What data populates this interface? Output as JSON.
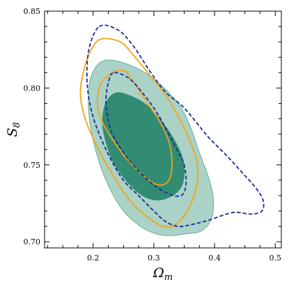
{
  "chart_data": {
    "type": "contour",
    "title": "",
    "xlabel": {
      "main": "Ω",
      "sub": "m"
    },
    "ylabel": {
      "main": "S",
      "sub": "8"
    },
    "xlim": [
      0.12,
      0.51
    ],
    "ylim": [
      0.696,
      0.85
    ],
    "xticks": [
      0.2,
      0.3,
      0.4,
      0.5
    ],
    "xtick_labels": [
      "0.2",
      "0.3",
      "0.4",
      "0.5"
    ],
    "yticks": [
      0.7,
      0.75,
      0.8,
      0.85
    ],
    "ytick_labels": [
      "0.70",
      "0.75",
      "0.80",
      "0.85"
    ],
    "grid": false,
    "legend": "none",
    "colors": {
      "teal_fill_inner": "#318c73",
      "teal_fill_outer": "#aad2c6",
      "teal_edge": "#6aae98",
      "orange": "#f5a316",
      "navy": "#1a2a9a"
    },
    "series": [
      {
        "style": "filled",
        "level": "outer",
        "color_key": "teal_fill_outer",
        "points": [
          [
            0.219,
            0.818
          ],
          [
            0.26,
            0.815
          ],
          [
            0.3,
            0.806
          ],
          [
            0.34,
            0.79
          ],
          [
            0.36,
            0.775
          ],
          [
            0.375,
            0.758
          ],
          [
            0.39,
            0.742
          ],
          [
            0.398,
            0.728
          ],
          [
            0.395,
            0.715
          ],
          [
            0.378,
            0.707
          ],
          [
            0.35,
            0.705
          ],
          [
            0.33,
            0.704
          ],
          [
            0.305,
            0.705
          ],
          [
            0.278,
            0.71
          ],
          [
            0.25,
            0.72
          ],
          [
            0.227,
            0.735
          ],
          [
            0.209,
            0.753
          ],
          [
            0.197,
            0.772
          ],
          [
            0.192,
            0.79
          ],
          [
            0.197,
            0.808
          ],
          [
            0.219,
            0.818
          ]
        ]
      },
      {
        "style": "filled",
        "level": "inner",
        "color_key": "teal_fill_inner",
        "points": [
          [
            0.237,
            0.797
          ],
          [
            0.262,
            0.795
          ],
          [
            0.292,
            0.788
          ],
          [
            0.318,
            0.776
          ],
          [
            0.34,
            0.762
          ],
          [
            0.35,
            0.75
          ],
          [
            0.348,
            0.738
          ],
          [
            0.335,
            0.731
          ],
          [
            0.31,
            0.727
          ],
          [
            0.285,
            0.729
          ],
          [
            0.26,
            0.737
          ],
          [
            0.235,
            0.75
          ],
          [
            0.222,
            0.763
          ],
          [
            0.215,
            0.777
          ],
          [
            0.22,
            0.79
          ],
          [
            0.237,
            0.797
          ]
        ]
      },
      {
        "style": "solid",
        "level": "outer",
        "color_key": "orange",
        "points": [
          [
            0.215,
            0.832
          ],
          [
            0.245,
            0.83
          ],
          [
            0.265,
            0.822
          ],
          [
            0.29,
            0.81
          ],
          [
            0.32,
            0.795
          ],
          [
            0.345,
            0.778
          ],
          [
            0.362,
            0.763
          ],
          [
            0.372,
            0.75
          ],
          [
            0.37,
            0.735
          ],
          [
            0.355,
            0.72
          ],
          [
            0.335,
            0.711
          ],
          [
            0.315,
            0.71
          ],
          [
            0.29,
            0.716
          ],
          [
            0.26,
            0.727
          ],
          [
            0.23,
            0.745
          ],
          [
            0.205,
            0.763
          ],
          [
            0.187,
            0.78
          ],
          [
            0.179,
            0.797
          ],
          [
            0.187,
            0.815
          ],
          [
            0.2,
            0.827
          ],
          [
            0.215,
            0.832
          ]
        ]
      },
      {
        "style": "solid",
        "level": "inner",
        "color_key": "orange",
        "points": [
          [
            0.232,
            0.81
          ],
          [
            0.252,
            0.811
          ],
          [
            0.268,
            0.803
          ],
          [
            0.29,
            0.79
          ],
          [
            0.31,
            0.778
          ],
          [
            0.325,
            0.765
          ],
          [
            0.33,
            0.751
          ],
          [
            0.326,
            0.741
          ],
          [
            0.315,
            0.737
          ],
          [
            0.3,
            0.738
          ],
          [
            0.28,
            0.744
          ],
          [
            0.255,
            0.754
          ],
          [
            0.233,
            0.766
          ],
          [
            0.215,
            0.778
          ],
          [
            0.207,
            0.79
          ],
          [
            0.213,
            0.803
          ],
          [
            0.232,
            0.81
          ]
        ]
      },
      {
        "style": "dashed",
        "level": "outer",
        "color_key": "navy",
        "points": [
          [
            0.21,
            0.84
          ],
          [
            0.24,
            0.838
          ],
          [
            0.265,
            0.828
          ],
          [
            0.295,
            0.81
          ],
          [
            0.32,
            0.797
          ],
          [
            0.35,
            0.787
          ],
          [
            0.39,
            0.768
          ],
          [
            0.42,
            0.756
          ],
          [
            0.45,
            0.743
          ],
          [
            0.468,
            0.735
          ],
          [
            0.48,
            0.727
          ],
          [
            0.478,
            0.72
          ],
          [
            0.46,
            0.718
          ],
          [
            0.43,
            0.719
          ],
          [
            0.39,
            0.714
          ],
          [
            0.36,
            0.711
          ],
          [
            0.34,
            0.71
          ],
          [
            0.32,
            0.713
          ],
          [
            0.3,
            0.72
          ],
          [
            0.275,
            0.73
          ],
          [
            0.25,
            0.74
          ],
          [
            0.23,
            0.753
          ],
          [
            0.21,
            0.77
          ],
          [
            0.196,
            0.787
          ],
          [
            0.19,
            0.805
          ],
          [
            0.193,
            0.825
          ],
          [
            0.21,
            0.84
          ]
        ]
      },
      {
        "style": "dashed",
        "level": "inner",
        "color_key": "navy",
        "points": [
          [
            0.235,
            0.81
          ],
          [
            0.26,
            0.806
          ],
          [
            0.285,
            0.795
          ],
          [
            0.305,
            0.784
          ],
          [
            0.322,
            0.772
          ],
          [
            0.338,
            0.76
          ],
          [
            0.35,
            0.75
          ],
          [
            0.353,
            0.737
          ],
          [
            0.345,
            0.73
          ],
          [
            0.325,
            0.731
          ],
          [
            0.3,
            0.737
          ],
          [
            0.275,
            0.746
          ],
          [
            0.25,
            0.758
          ],
          [
            0.23,
            0.772
          ],
          [
            0.221,
            0.79
          ],
          [
            0.226,
            0.805
          ],
          [
            0.235,
            0.81
          ]
        ]
      }
    ]
  }
}
